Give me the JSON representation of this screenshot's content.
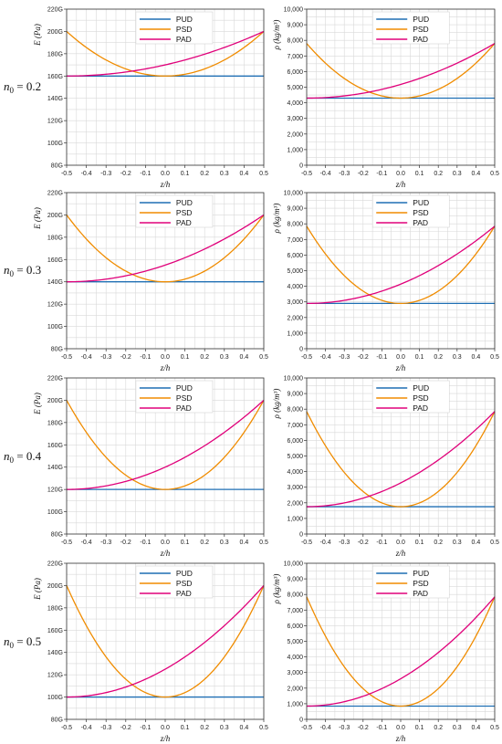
{
  "colors": {
    "PUD": "#1f6fb4",
    "PSD": "#f08c00",
    "PAD": "#e0007a"
  },
  "rows": [
    {
      "label_n": "n",
      "label_sub": "0",
      "label_eq": " = 0.2"
    },
    {
      "label_n": "n",
      "label_sub": "0",
      "label_eq": " = 0.3"
    },
    {
      "label_n": "n",
      "label_sub": "0",
      "label_eq": " = 0.4"
    },
    {
      "label_n": "n",
      "label_sub": "0",
      "label_eq": " = 0.5"
    }
  ],
  "chart_data": [
    {
      "type": "line",
      "panel": "E-n0.2",
      "xlabel": "z/h",
      "ylabel": "E (Pa)",
      "xlim": [
        -0.5,
        0.5
      ],
      "ylim": [
        80,
        220
      ],
      "xticks": [
        "-0.5",
        "-0.4",
        "-0.3",
        "-0.2",
        "-0.1",
        "0.0",
        "0.1",
        "0.2",
        "0.3",
        "0.4",
        "0.5"
      ],
      "yticks": [
        "80G",
        "100G",
        "120G",
        "140G",
        "160G",
        "180G",
        "200G",
        "220G"
      ],
      "legend": "top-center",
      "series": [
        {
          "name": "PUD",
          "min": 160,
          "max": 160
        },
        {
          "name": "PSD",
          "min": 160,
          "max": 200
        },
        {
          "name": "PAD",
          "min": 160,
          "max": 200
        }
      ]
    },
    {
      "type": "line",
      "panel": "rho-n0.2",
      "xlabel": "z/h",
      "ylabel": "ρ (kg/m³)",
      "xlim": [
        -0.5,
        0.5
      ],
      "ylim": [
        0,
        10000
      ],
      "xticks": [
        "-0.5",
        "-0.4",
        "-0.3",
        "-0.2",
        "-0.1",
        "0.0",
        "0.1",
        "0.2",
        "0.3",
        "0.4",
        "0.5"
      ],
      "yticks": [
        "0",
        "1,000",
        "2,000",
        "3,000",
        "4,000",
        "5,000",
        "6,000",
        "7,000",
        "8,000",
        "9,000",
        "10,000"
      ],
      "legend": "top-center",
      "series": [
        {
          "name": "PUD",
          "min": 4300,
          "max": 4300
        },
        {
          "name": "PSD",
          "min": 4300,
          "max": 7800
        },
        {
          "name": "PAD",
          "min": 4300,
          "max": 7800
        }
      ]
    },
    {
      "type": "line",
      "panel": "E-n0.3",
      "xlabel": "z/h",
      "ylabel": "E (Pa)",
      "xlim": [
        -0.5,
        0.5
      ],
      "ylim": [
        80,
        220
      ],
      "xticks": [
        "-0.5",
        "-0.4",
        "-0.3",
        "-0.2",
        "-0.1",
        "0.0",
        "0.1",
        "0.2",
        "0.3",
        "0.4",
        "0.5"
      ],
      "yticks": [
        "80G",
        "100G",
        "120G",
        "140G",
        "160G",
        "180G",
        "200G",
        "220G"
      ],
      "legend": "top-center",
      "series": [
        {
          "name": "PUD",
          "min": 140,
          "max": 140
        },
        {
          "name": "PSD",
          "min": 140,
          "max": 200
        },
        {
          "name": "PAD",
          "min": 140,
          "max": 200
        }
      ]
    },
    {
      "type": "line",
      "panel": "rho-n0.3",
      "xlabel": "z/h",
      "ylabel": "ρ (kg/m³)",
      "xlim": [
        -0.5,
        0.5
      ],
      "ylim": [
        0,
        10000
      ],
      "xticks": [
        "-0.5",
        "-0.4",
        "-0.3",
        "-0.2",
        "-0.1",
        "0.0",
        "0.1",
        "0.2",
        "0.3",
        "0.4",
        "0.5"
      ],
      "yticks": [
        "0",
        "1,000",
        "2,000",
        "3,000",
        "4,000",
        "5,000",
        "6,000",
        "7,000",
        "8,000",
        "9,000",
        "10,000"
      ],
      "legend": "top-center",
      "series": [
        {
          "name": "PUD",
          "min": 2900,
          "max": 2900
        },
        {
          "name": "PSD",
          "min": 2900,
          "max": 7850
        },
        {
          "name": "PAD",
          "min": 2900,
          "max": 7850
        }
      ]
    },
    {
      "type": "line",
      "panel": "E-n0.4",
      "xlabel": "z/h",
      "ylabel": "E (Pa)",
      "xlim": [
        -0.5,
        0.5
      ],
      "ylim": [
        80,
        220
      ],
      "xticks": [
        "-0.5",
        "-0.4",
        "-0.3",
        "-0.2",
        "-0.1",
        "0.0",
        "0.1",
        "0.2",
        "0.3",
        "0.4",
        "0.5"
      ],
      "yticks": [
        "80G",
        "100G",
        "120G",
        "140G",
        "160G",
        "180G",
        "200G",
        "220G"
      ],
      "legend": "top-center",
      "series": [
        {
          "name": "PUD",
          "min": 120,
          "max": 120
        },
        {
          "name": "PSD",
          "min": 120,
          "max": 200
        },
        {
          "name": "PAD",
          "min": 120,
          "max": 200
        }
      ]
    },
    {
      "type": "line",
      "panel": "rho-n0.4",
      "xlabel": "z/h",
      "ylabel": "ρ (kg/m³)",
      "xlim": [
        -0.5,
        0.5
      ],
      "ylim": [
        0,
        10000
      ],
      "xticks": [
        "-0.5",
        "-0.4",
        "-0.3",
        "-0.2",
        "-0.1",
        "0.0",
        "0.1",
        "0.2",
        "0.3",
        "0.4",
        "0.5"
      ],
      "yticks": [
        "0",
        "1,000",
        "2,000",
        "3,000",
        "4,000",
        "5,000",
        "6,000",
        "7,000",
        "8,000",
        "9,000",
        "10,000"
      ],
      "legend": "top-center",
      "series": [
        {
          "name": "PUD",
          "min": 1750,
          "max": 1750
        },
        {
          "name": "PSD",
          "min": 1750,
          "max": 7850
        },
        {
          "name": "PAD",
          "min": 1750,
          "max": 7850
        }
      ]
    },
    {
      "type": "line",
      "panel": "E-n0.5",
      "xlabel": "z/h",
      "ylabel": "E (Pa)",
      "xlim": [
        -0.5,
        0.5
      ],
      "ylim": [
        80,
        220
      ],
      "xticks": [
        "-0.5",
        "-0.4",
        "-0.3",
        "-0.2",
        "-0.1",
        "0.0",
        "0.1",
        "0.2",
        "0.3",
        "0.4",
        "0.5"
      ],
      "yticks": [
        "80G",
        "100G",
        "120G",
        "140G",
        "160G",
        "180G",
        "200G",
        "220G"
      ],
      "legend": "top-center",
      "series": [
        {
          "name": "PUD",
          "min": 100,
          "max": 100
        },
        {
          "name": "PSD",
          "min": 100,
          "max": 200
        },
        {
          "name": "PAD",
          "min": 100,
          "max": 200
        }
      ]
    },
    {
      "type": "line",
      "panel": "rho-n0.5",
      "xlabel": "z/h",
      "ylabel": "ρ (kg/m³)",
      "xlim": [
        -0.5,
        0.5
      ],
      "ylim": [
        0,
        10000
      ],
      "xticks": [
        "-0.5",
        "-0.4",
        "-0.3",
        "-0.2",
        "-0.1",
        "0.0",
        "0.1",
        "0.2",
        "0.3",
        "0.4",
        "0.5"
      ],
      "yticks": [
        "0",
        "1,000",
        "2,000",
        "3,000",
        "4,000",
        "5,000",
        "6,000",
        "7,000",
        "8,000",
        "9,000",
        "10,000"
      ],
      "legend": "top-center",
      "series": [
        {
          "name": "PUD",
          "min": 850,
          "max": 850
        },
        {
          "name": "PSD",
          "min": 850,
          "max": 7850
        },
        {
          "name": "PAD",
          "min": 850,
          "max": 7850
        }
      ]
    }
  ]
}
